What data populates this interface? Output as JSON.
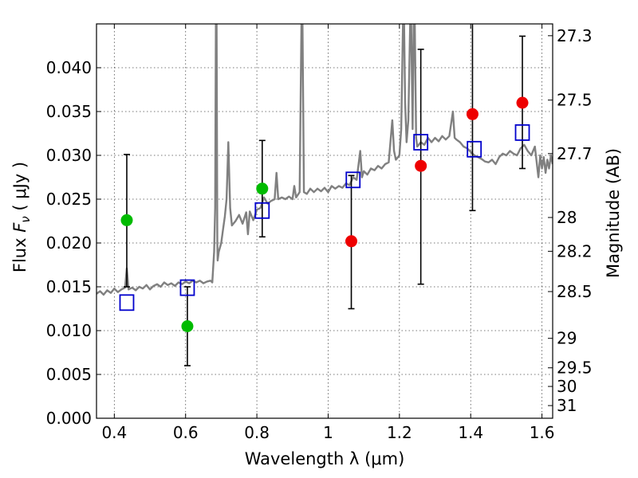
{
  "chart_data": {
    "type": "scatter",
    "title": "",
    "xlabel": "Wavelength  λ (μm)",
    "ylabel": "Flux  F_ν  ( μJy )",
    "ylabel_parts": {
      "prefix": "Flux  ",
      "symbol": "F",
      "subscript": "ν",
      "suffix": "  ( μJy )"
    },
    "y2label": "Magnitude (AB)",
    "xlim": [
      0.35,
      1.63
    ],
    "ylim": [
      0.0,
      0.045
    ],
    "grid": true,
    "x_ticks": [
      {
        "value": 0.4,
        "label": "0.4"
      },
      {
        "value": 0.6,
        "label": "0.6"
      },
      {
        "value": 0.8,
        "label": "0.8"
      },
      {
        "value": 1.0,
        "label": "1"
      },
      {
        "value": 1.2,
        "label": "1.2"
      },
      {
        "value": 1.4,
        "label": "1.4"
      },
      {
        "value": 1.6,
        "label": "1.6"
      }
    ],
    "y_ticks": [
      {
        "value": 0.0,
        "label": "0.000"
      },
      {
        "value": 0.005,
        "label": "0.005"
      },
      {
        "value": 0.01,
        "label": "0.010"
      },
      {
        "value": 0.015,
        "label": "0.015"
      },
      {
        "value": 0.02,
        "label": "0.020"
      },
      {
        "value": 0.025,
        "label": "0.025"
      },
      {
        "value": 0.03,
        "label": "0.030"
      },
      {
        "value": 0.035,
        "label": "0.035"
      },
      {
        "value": 0.04,
        "label": "0.040"
      }
    ],
    "magnitude_ticks": [
      {
        "mag": 27.3,
        "label": "27.3"
      },
      {
        "mag": 27.5,
        "label": "27.5"
      },
      {
        "mag": 27.7,
        "label": "27.7"
      },
      {
        "mag": 28.0,
        "label": "28"
      },
      {
        "mag": 28.2,
        "label": "28.2"
      },
      {
        "mag": 28.5,
        "label": "28.5"
      },
      {
        "mag": 29.0,
        "label": "29"
      },
      {
        "mag": 29.5,
        "label": "29.5"
      },
      {
        "mag": 30.0,
        "label": "30"
      },
      {
        "mag": 31.0,
        "label": "31"
      }
    ],
    "series": [
      {
        "name": "Model spectrum",
        "kind": "line",
        "color": "#808080",
        "points": [
          [
            0.35,
            0.0142
          ],
          [
            0.36,
            0.0145
          ],
          [
            0.37,
            0.0141
          ],
          [
            0.38,
            0.0146
          ],
          [
            0.39,
            0.0143
          ],
          [
            0.4,
            0.0148
          ],
          [
            0.41,
            0.0144
          ],
          [
            0.42,
            0.0147
          ],
          [
            0.43,
            0.0149
          ],
          [
            0.435,
            0.0171
          ],
          [
            0.44,
            0.0147
          ],
          [
            0.45,
            0.0149
          ],
          [
            0.46,
            0.0146
          ],
          [
            0.47,
            0.015
          ],
          [
            0.48,
            0.0148
          ],
          [
            0.49,
            0.0152
          ],
          [
            0.5,
            0.0147
          ],
          [
            0.51,
            0.0151
          ],
          [
            0.52,
            0.0153
          ],
          [
            0.53,
            0.015
          ],
          [
            0.54,
            0.0155
          ],
          [
            0.55,
            0.0152
          ],
          [
            0.56,
            0.0154
          ],
          [
            0.57,
            0.0151
          ],
          [
            0.58,
            0.0155
          ],
          [
            0.59,
            0.0153
          ],
          [
            0.6,
            0.0156
          ],
          [
            0.61,
            0.0154
          ],
          [
            0.62,
            0.0157
          ],
          [
            0.63,
            0.0155
          ],
          [
            0.64,
            0.0157
          ],
          [
            0.65,
            0.0154
          ],
          [
            0.66,
            0.0156
          ],
          [
            0.67,
            0.0157
          ],
          [
            0.675,
            0.0155
          ],
          [
            0.68,
            0.019
          ],
          [
            0.683,
            0.024
          ],
          [
            0.685,
            0.045
          ],
          [
            0.687,
            0.045
          ],
          [
            0.689,
            0.02
          ],
          [
            0.69,
            0.018
          ],
          [
            0.693,
            0.019
          ],
          [
            0.7,
            0.02
          ],
          [
            0.705,
            0.0215
          ],
          [
            0.71,
            0.023
          ],
          [
            0.715,
            0.025
          ],
          [
            0.72,
            0.0315
          ],
          [
            0.725,
            0.024
          ],
          [
            0.73,
            0.022
          ],
          [
            0.74,
            0.0225
          ],
          [
            0.75,
            0.0232
          ],
          [
            0.76,
            0.0222
          ],
          [
            0.77,
            0.0235
          ],
          [
            0.775,
            0.021
          ],
          [
            0.78,
            0.0236
          ],
          [
            0.79,
            0.0226
          ],
          [
            0.8,
            0.0238
          ],
          [
            0.81,
            0.024
          ],
          [
            0.82,
            0.0252
          ],
          [
            0.83,
            0.0245
          ],
          [
            0.84,
            0.0248
          ],
          [
            0.85,
            0.025
          ],
          [
            0.855,
            0.028
          ],
          [
            0.86,
            0.025
          ],
          [
            0.87,
            0.0252
          ],
          [
            0.88,
            0.025
          ],
          [
            0.89,
            0.0253
          ],
          [
            0.9,
            0.025
          ],
          [
            0.905,
            0.0265
          ],
          [
            0.91,
            0.0252
          ],
          [
            0.92,
            0.0258
          ],
          [
            0.925,
            0.045
          ],
          [
            0.928,
            0.045
          ],
          [
            0.932,
            0.0258
          ],
          [
            0.94,
            0.0256
          ],
          [
            0.95,
            0.0262
          ],
          [
            0.96,
            0.0258
          ],
          [
            0.97,
            0.0262
          ],
          [
            0.98,
            0.0259
          ],
          [
            0.99,
            0.0263
          ],
          [
            1.0,
            0.0258
          ],
          [
            1.01,
            0.0265
          ],
          [
            1.02,
            0.0262
          ],
          [
            1.03,
            0.0265
          ],
          [
            1.04,
            0.0263
          ],
          [
            1.05,
            0.0268
          ],
          [
            1.06,
            0.0266
          ],
          [
            1.07,
            0.0275
          ],
          [
            1.08,
            0.0272
          ],
          [
            1.09,
            0.0305
          ],
          [
            1.095,
            0.0275
          ],
          [
            1.1,
            0.0282
          ],
          [
            1.11,
            0.0278
          ],
          [
            1.12,
            0.0285
          ],
          [
            1.13,
            0.0283
          ],
          [
            1.14,
            0.0288
          ],
          [
            1.15,
            0.0285
          ],
          [
            1.16,
            0.029
          ],
          [
            1.17,
            0.0292
          ],
          [
            1.18,
            0.034
          ],
          [
            1.185,
            0.0305
          ],
          [
            1.19,
            0.0295
          ],
          [
            1.2,
            0.03
          ],
          [
            1.205,
            0.033
          ],
          [
            1.21,
            0.045
          ],
          [
            1.213,
            0.045
          ],
          [
            1.216,
            0.036
          ],
          [
            1.22,
            0.0315
          ],
          [
            1.225,
            0.034
          ],
          [
            1.23,
            0.045
          ],
          [
            1.233,
            0.045
          ],
          [
            1.237,
            0.033
          ],
          [
            1.24,
            0.045
          ],
          [
            1.243,
            0.045
          ],
          [
            1.247,
            0.032
          ],
          [
            1.25,
            0.031
          ],
          [
            1.26,
            0.0315
          ],
          [
            1.27,
            0.0312
          ],
          [
            1.28,
            0.032
          ],
          [
            1.29,
            0.0315
          ],
          [
            1.3,
            0.032
          ],
          [
            1.31,
            0.0316
          ],
          [
            1.32,
            0.0322
          ],
          [
            1.33,
            0.0318
          ],
          [
            1.34,
            0.0322
          ],
          [
            1.35,
            0.035
          ],
          [
            1.355,
            0.032
          ],
          [
            1.36,
            0.0318
          ],
          [
            1.37,
            0.0315
          ],
          [
            1.38,
            0.031
          ],
          [
            1.39,
            0.0308
          ],
          [
            1.4,
            0.0304
          ],
          [
            1.41,
            0.03
          ],
          [
            1.42,
            0.0298
          ],
          [
            1.43,
            0.0296
          ],
          [
            1.44,
            0.0293
          ],
          [
            1.45,
            0.0292
          ],
          [
            1.46,
            0.0295
          ],
          [
            1.47,
            0.029
          ],
          [
            1.48,
            0.0298
          ],
          [
            1.49,
            0.0302
          ],
          [
            1.5,
            0.03
          ],
          [
            1.51,
            0.0305
          ],
          [
            1.52,
            0.0302
          ],
          [
            1.53,
            0.03
          ],
          [
            1.54,
            0.0308
          ],
          [
            1.55,
            0.0312
          ],
          [
            1.56,
            0.0305
          ],
          [
            1.57,
            0.03
          ],
          [
            1.58,
            0.031
          ],
          [
            1.59,
            0.0275
          ],
          [
            1.595,
            0.03
          ],
          [
            1.6,
            0.0285
          ],
          [
            1.605,
            0.0298
          ],
          [
            1.61,
            0.028
          ],
          [
            1.615,
            0.0295
          ],
          [
            1.62,
            0.0285
          ],
          [
            1.625,
            0.03
          ],
          [
            1.63,
            0.029
          ]
        ]
      },
      {
        "name": "Observed (green)",
        "kind": "marker",
        "marker": "circle",
        "color": "#00bb00",
        "points": [
          [
            0.435,
            0.0226
          ],
          [
            0.605,
            0.0105
          ],
          [
            0.815,
            0.0262
          ]
        ]
      },
      {
        "name": "Observed (red)",
        "kind": "marker",
        "marker": "circle",
        "color": "#ee0000",
        "points": [
          [
            1.065,
            0.0202
          ],
          [
            1.26,
            0.0288
          ],
          [
            1.405,
            0.0347
          ],
          [
            1.545,
            0.036
          ]
        ]
      },
      {
        "name": "Model photometry",
        "kind": "marker",
        "marker": "square",
        "color": "#0000cc",
        "points": [
          [
            0.435,
            0.0132
          ],
          [
            0.605,
            0.0149
          ],
          [
            0.815,
            0.0237
          ],
          [
            1.07,
            0.0272
          ],
          [
            1.26,
            0.0315
          ],
          [
            1.41,
            0.0307
          ],
          [
            1.545,
            0.0326
          ]
        ]
      }
    ],
    "error_bars": [
      {
        "x": 0.435,
        "low": 0.015,
        "high": 0.0301
      },
      {
        "x": 0.605,
        "low": 0.006,
        "high": 0.015
      },
      {
        "x": 0.815,
        "low": 0.0207,
        "high": 0.0317
      },
      {
        "x": 1.065,
        "low": 0.0125,
        "high": 0.0277
      },
      {
        "x": 1.26,
        "low": 0.0153,
        "high": 0.0421
      },
      {
        "x": 1.405,
        "low": 0.0237,
        "high": 0.045
      },
      {
        "x": 1.545,
        "low": 0.0285,
        "high": 0.0436
      }
    ]
  }
}
